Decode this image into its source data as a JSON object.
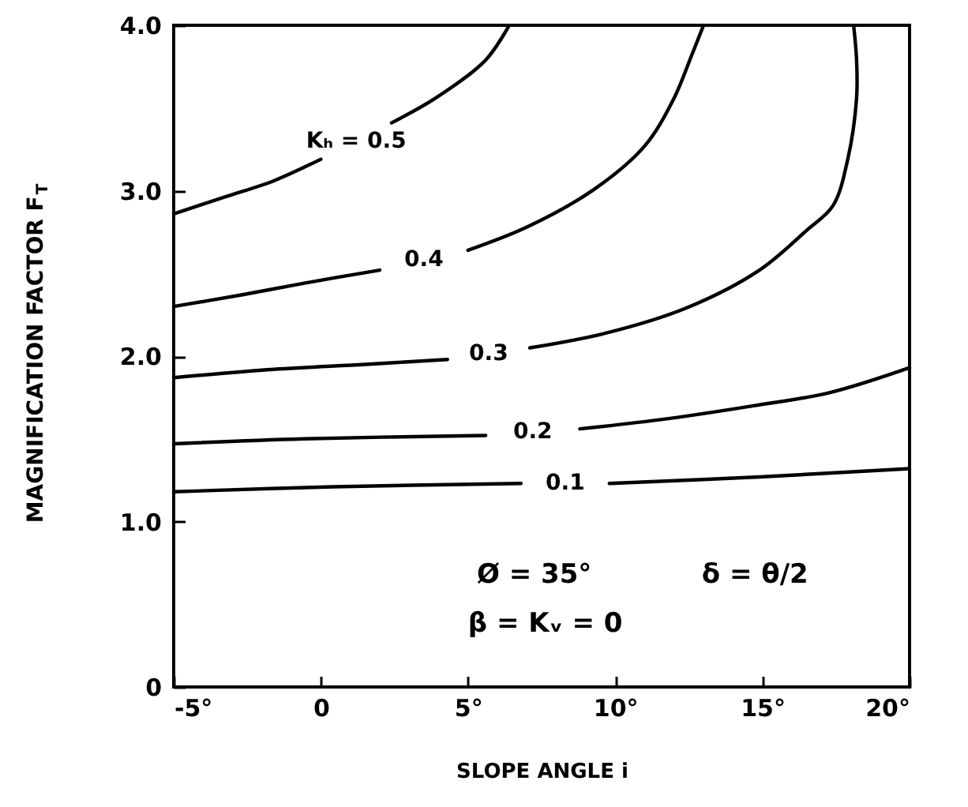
{
  "chart_data": {
    "type": "line",
    "xlabel": "SLOPE ANGLE i",
    "ylabel": "MAGNIFICATION FACTOR F$_{T}$",
    "xlim": [
      -5,
      20
    ],
    "xticks": [
      {
        "value": -5,
        "label": "-5°"
      },
      0,
      {
        "value": 5,
        "label": "5°"
      },
      {
        "value": 10,
        "label": "10°"
      },
      {
        "value": 15,
        "label": "15°"
      },
      {
        "value": 20,
        "label": "20°"
      }
    ],
    "ylim": [
      0,
      4
    ],
    "yticks": [
      0,
      {
        "value": 1,
        "label": "1.0"
      },
      {
        "value": 2,
        "label": "2.0"
      },
      {
        "value": 3,
        "label": "3.0"
      },
      {
        "value": 4,
        "label": "4.0"
      }
    ],
    "annotations": [
      "Ø = 35°",
      "δ = θ/2",
      "β = Kᵥ = 0"
    ],
    "series": [
      {
        "name": "Kₕ = 0.5",
        "color": "#000000",
        "x": [
          -5,
          -3.3,
          -1.6,
          0.0,
          1.2,
          2.4,
          3.9,
          5.6,
          6.4
        ],
        "values": [
          2.86,
          2.96,
          3.06,
          3.19,
          null,
          3.41,
          3.56,
          3.79,
          4.0
        ]
      },
      {
        "name": "0.4",
        "color": "#000000",
        "x": [
          -5,
          -2.7,
          -0.6,
          2.0,
          3.5,
          5.0,
          7.0,
          9.3,
          11.0,
          12.0,
          12.6,
          13.0
        ],
        "values": [
          2.3,
          2.37,
          2.44,
          2.52,
          null,
          2.64,
          2.78,
          3.01,
          3.27,
          3.56,
          3.82,
          4.0
        ]
      },
      {
        "name": "0.3",
        "color": "#000000",
        "x": [
          -5,
          -1.6,
          1.5,
          4.3,
          5.7,
          7.1,
          9.7,
          12.4,
          14.9,
          16.5,
          17.4,
          17.9,
          18.2,
          18.2,
          18.1
        ],
        "values": [
          1.87,
          1.92,
          1.95,
          1.98,
          null,
          2.05,
          2.14,
          2.29,
          2.52,
          2.76,
          2.91,
          3.19,
          3.56,
          3.79,
          4.0
        ]
      },
      {
        "name": "0.2",
        "color": "#000000",
        "x": [
          -5,
          -0.6,
          5.6,
          7.2,
          8.8,
          11.7,
          14.7,
          17.3,
          20
        ],
        "values": [
          1.47,
          1.5,
          1.52,
          null,
          1.56,
          1.62,
          1.7,
          1.78,
          1.93
        ]
      },
      {
        "name": "0.1",
        "color": "#000000",
        "x": [
          -5,
          0.4,
          6.8,
          8.3,
          9.8,
          14.9,
          20
        ],
        "values": [
          1.18,
          1.21,
          1.23,
          null,
          1.23,
          1.27,
          1.32
        ]
      }
    ]
  }
}
